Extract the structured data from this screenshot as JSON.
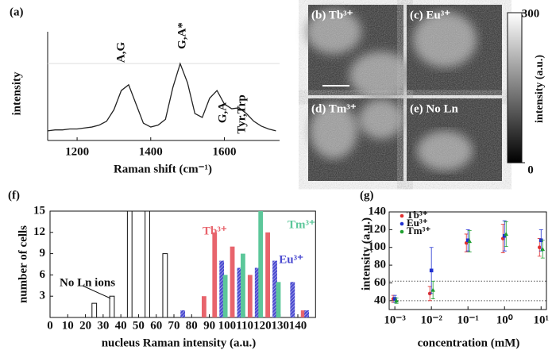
{
  "chart_data": [
    {
      "type": "line",
      "panel_label": "(a)",
      "xlabel": "Raman shift (cm⁻¹)",
      "ylabel": "intensity",
      "x": [
        1120,
        1140,
        1160,
        1180,
        1200,
        1220,
        1240,
        1260,
        1280,
        1300,
        1320,
        1340,
        1360,
        1380,
        1400,
        1420,
        1440,
        1460,
        1480,
        1500,
        1520,
        1540,
        1560,
        1580,
        1600,
        1620,
        1640,
        1660,
        1680,
        1700,
        1720,
        1740
      ],
      "values": [
        10,
        11,
        11,
        12,
        12,
        13,
        14,
        16,
        20,
        32,
        52,
        58,
        38,
        18,
        14,
        16,
        22,
        55,
        80,
        60,
        28,
        24,
        44,
        52,
        38,
        33,
        34,
        28,
        20,
        15,
        12,
        10
      ],
      "color": "#222222",
      "xlim": [
        1120,
        1750
      ],
      "ylim": [
        0,
        100
      ],
      "xticks": [
        1200,
        1400,
        1600
      ],
      "annotations": [
        {
          "text": "A,G",
          "color": "#111111"
        },
        {
          "text": "G,A*",
          "color": "#e03030"
        },
        {
          "text": "G,A",
          "color": "#111111"
        },
        {
          "text": "Tyr,Trp",
          "color": "#111111"
        }
      ]
    },
    {
      "type": "image_grid",
      "panels": [
        {
          "label": "(b) Tb³⁺"
        },
        {
          "label": "(c) Eu³⁺"
        },
        {
          "label": "(d) Tm³⁺"
        },
        {
          "label": "(e) No Ln"
        }
      ],
      "colorbar": {
        "label": "intensity (a.u.)",
        "lim": [
          0,
          300
        ],
        "ticks": [
          0,
          300
        ]
      }
    },
    {
      "type": "histogram",
      "panel_label": "(f)",
      "xlabel": "nucleus Raman intensity (a.u.)",
      "ylabel": "number of cells",
      "xlim": [
        0,
        150
      ],
      "ylim": [
        0,
        15
      ],
      "xticks": [
        0,
        10,
        20,
        30,
        40,
        50,
        60,
        70,
        80,
        90,
        100,
        110,
        120,
        130,
        140
      ],
      "yticks": [
        0,
        3,
        6,
        9,
        12,
        15
      ],
      "series": [
        {
          "name": "No Ln ions",
          "color": "#ffffff",
          "x": [
            25,
            35,
            45,
            55,
            65
          ],
          "values": [
            2,
            3,
            15,
            15,
            9
          ]
        },
        {
          "name": "Tb³⁺",
          "color": "#e8646c",
          "x": [
            87,
            93,
            103,
            113,
            123,
            143
          ],
          "values": [
            3,
            12,
            10,
            6,
            12,
            1
          ]
        },
        {
          "name": "Eu³⁺",
          "color": "#4a4ad0",
          "x": [
            75,
            97,
            107,
            117,
            127,
            137,
            145
          ],
          "values": [
            1,
            8,
            7,
            7,
            8,
            5,
            1
          ]
        },
        {
          "name": "Tm³⁺",
          "color": "#5cc79a",
          "x": [
            99,
            109,
            119,
            129
          ],
          "values": [
            6,
            9,
            15,
            5
          ]
        }
      ]
    },
    {
      "type": "scatter",
      "panel_label": "(g)",
      "xlabel": "concentration (mM)",
      "ylabel": "intensity (a.u.)",
      "log_x": true,
      "x": [
        0.001,
        0.01,
        0.1,
        1,
        10
      ],
      "xlim": [
        0.0007,
        14
      ],
      "ylim": [
        30,
        140
      ],
      "xticks": [
        {
          "value": 0.001,
          "label": "10⁻³"
        },
        {
          "value": 0.01,
          "label": "10⁻²"
        },
        {
          "value": 0.1,
          "label": "10⁻¹"
        },
        {
          "value": 1,
          "label": "10⁰"
        },
        {
          "value": 10,
          "label": "10¹"
        }
      ],
      "yticks": [
        40,
        60,
        80,
        100,
        120,
        140
      ],
      "reference_lines": [
        62,
        40
      ],
      "legend": "upper-left",
      "series": [
        {
          "name": "Tb³⁺",
          "color": "#e03030",
          "values": [
            42,
            48,
            105,
            110,
            100
          ],
          "errors": [
            4,
            8,
            10,
            16,
            10
          ]
        },
        {
          "name": "Eu³⁺",
          "color": "#2030d0",
          "values": [
            42,
            74,
            108,
            113,
            108
          ],
          "errors": [
            4,
            26,
            12,
            17,
            12
          ]
        },
        {
          "name": "Tm³⁺",
          "color": "#20a030",
          "values": [
            40,
            52,
            107,
            115,
            98
          ],
          "errors": [
            3,
            10,
            12,
            14,
            10
          ]
        }
      ]
    }
  ]
}
